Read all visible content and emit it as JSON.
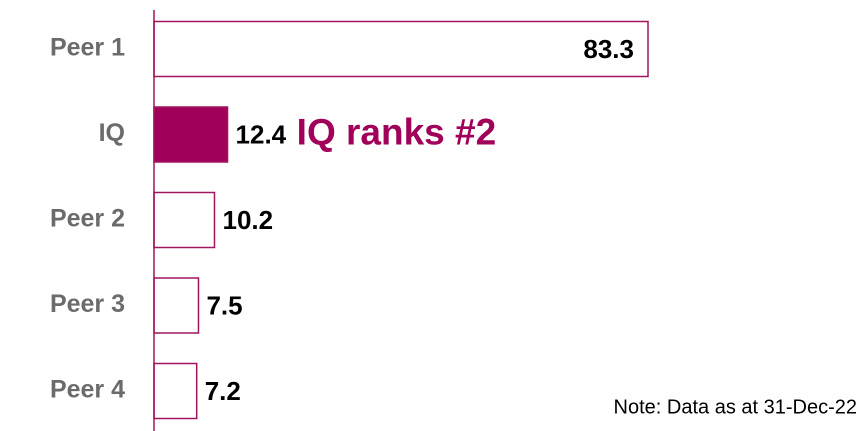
{
  "chart_data": {
    "type": "hbar",
    "categories": [
      "Peer 1",
      "IQ",
      "Peer 2",
      "Peer 3",
      "Peer 4"
    ],
    "values": [
      83.3,
      12.4,
      10.2,
      7.5,
      7.2
    ],
    "colors": [
      "#ffffff",
      "#a0005a",
      "#ffffff",
      "#ffffff",
      "#ffffff"
    ],
    "edge_color": "#a0155e",
    "annotation": "IQ ranks #2",
    "note": "Note: Data as at 31-Dec-22"
  }
}
